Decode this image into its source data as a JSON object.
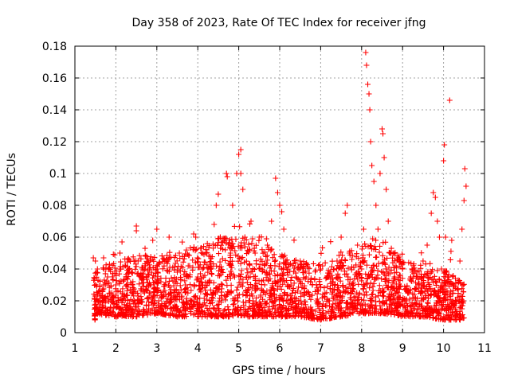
{
  "chart_data": {
    "type": "scatter",
    "title": "Day 358 of 2023, Rate Of TEC Index for receiver jfng",
    "xlabel": "GPS time / hours",
    "ylabel": "ROTI / TECUs",
    "xlim": [
      1,
      11
    ],
    "ylim": [
      0,
      0.18
    ],
    "x_ticks": [
      "1",
      "2",
      "3",
      "4",
      "5",
      "6",
      "7",
      "8",
      "9",
      "10",
      "11"
    ],
    "y_ticks": [
      "0",
      "0.02",
      "0.04",
      "0.06",
      "0.08",
      "0.1",
      "0.12",
      "0.14",
      "0.16",
      "0.18"
    ],
    "grid": true,
    "marker": "+",
    "color": "#ff0000",
    "series": [
      {
        "name": "ROTI",
        "points": [
          [
            1.45,
            0.047
          ],
          [
            1.5,
            0.045
          ],
          [
            1.55,
            0.04
          ],
          [
            1.6,
            0.025
          ],
          [
            1.6,
            0.015
          ],
          [
            1.7,
            0.03
          ],
          [
            1.7,
            0.047
          ],
          [
            1.75,
            0.02
          ],
          [
            1.8,
            0.035
          ],
          [
            1.8,
            0.012
          ],
          [
            1.9,
            0.025
          ],
          [
            1.95,
            0.018
          ],
          [
            2.0,
            0.03
          ],
          [
            2.05,
            0.02
          ],
          [
            2.1,
            0.04
          ],
          [
            2.1,
            0.05
          ],
          [
            2.15,
            0.057
          ],
          [
            2.2,
            0.022
          ],
          [
            2.25,
            0.035
          ],
          [
            2.3,
            0.015
          ],
          [
            2.4,
            0.03
          ],
          [
            2.45,
            0.045
          ],
          [
            2.5,
            0.067
          ],
          [
            2.5,
            0.064
          ],
          [
            2.55,
            0.02
          ],
          [
            2.6,
            0.035
          ],
          [
            2.7,
            0.025
          ],
          [
            2.75,
            0.048
          ],
          [
            2.8,
            0.015
          ],
          [
            2.85,
            0.03
          ],
          [
            2.9,
            0.058
          ],
          [
            3.0,
            0.065
          ],
          [
            3.0,
            0.04
          ],
          [
            3.05,
            0.02
          ],
          [
            3.1,
            0.032
          ],
          [
            3.2,
            0.045
          ],
          [
            3.3,
            0.06
          ],
          [
            3.35,
            0.025
          ],
          [
            3.4,
            0.015
          ],
          [
            3.5,
            0.038
          ],
          [
            3.55,
            0.05
          ],
          [
            3.6,
            0.022
          ],
          [
            3.7,
            0.03
          ],
          [
            3.8,
            0.042
          ],
          [
            3.9,
            0.062
          ],
          [
            3.95,
            0.06
          ],
          [
            4.0,
            0.035
          ],
          [
            4.05,
            0.018
          ],
          [
            4.1,
            0.028
          ],
          [
            4.2,
            0.05
          ],
          [
            4.3,
            0.04
          ],
          [
            4.4,
            0.068
          ],
          [
            4.45,
            0.08
          ],
          [
            4.5,
            0.087
          ],
          [
            4.55,
            0.06
          ],
          [
            4.6,
            0.03
          ],
          [
            4.7,
            0.1
          ],
          [
            4.72,
            0.098
          ],
          [
            4.8,
            0.05
          ],
          [
            4.85,
            0.08
          ],
          [
            4.9,
            0.035
          ],
          [
            4.95,
            0.1
          ],
          [
            5.0,
            0.112
          ],
          [
            5.05,
            0.115
          ],
          [
            5.05,
            0.1
          ],
          [
            5.1,
            0.09
          ],
          [
            5.15,
            0.06
          ],
          [
            5.2,
            0.04
          ],
          [
            5.3,
            0.07
          ],
          [
            5.35,
            0.02
          ],
          [
            5.4,
            0.05
          ],
          [
            5.5,
            0.06
          ],
          [
            5.6,
            0.033
          ],
          [
            5.65,
            0.018
          ],
          [
            5.7,
            0.055
          ],
          [
            5.8,
            0.07
          ],
          [
            5.9,
            0.097
          ],
          [
            5.95,
            0.088
          ],
          [
            6.0,
            0.08
          ],
          [
            6.05,
            0.076
          ],
          [
            6.1,
            0.065
          ],
          [
            6.15,
            0.045
          ],
          [
            6.2,
            0.03
          ],
          [
            6.3,
            0.02
          ],
          [
            6.4,
            0.035
          ],
          [
            6.5,
            0.045
          ],
          [
            6.6,
            0.025
          ],
          [
            6.7,
            0.015
          ],
          [
            6.8,
            0.03
          ],
          [
            6.9,
            0.02
          ],
          [
            7.0,
            0.04
          ],
          [
            7.1,
            0.022
          ],
          [
            7.2,
            0.035
          ],
          [
            7.3,
            0.018
          ],
          [
            7.4,
            0.045
          ],
          [
            7.5,
            0.06
          ],
          [
            7.6,
            0.075
          ],
          [
            7.65,
            0.08
          ],
          [
            7.7,
            0.05
          ],
          [
            7.8,
            0.03
          ],
          [
            7.9,
            0.055
          ],
          [
            8.0,
            0.04
          ],
          [
            8.05,
            0.065
          ],
          [
            8.1,
            0.176
          ],
          [
            8.12,
            0.168
          ],
          [
            8.15,
            0.156
          ],
          [
            8.18,
            0.15
          ],
          [
            8.2,
            0.14
          ],
          [
            8.22,
            0.12
          ],
          [
            8.25,
            0.105
          ],
          [
            8.3,
            0.095
          ],
          [
            8.35,
            0.08
          ],
          [
            8.4,
            0.065
          ],
          [
            8.45,
            0.1
          ],
          [
            8.5,
            0.128
          ],
          [
            8.52,
            0.125
          ],
          [
            8.55,
            0.11
          ],
          [
            8.6,
            0.09
          ],
          [
            8.65,
            0.07
          ],
          [
            8.7,
            0.05
          ],
          [
            8.8,
            0.035
          ],
          [
            8.9,
            0.025
          ],
          [
            9.0,
            0.04
          ],
          [
            9.1,
            0.02
          ],
          [
            9.2,
            0.035
          ],
          [
            9.3,
            0.015
          ],
          [
            9.4,
            0.03
          ],
          [
            9.5,
            0.045
          ],
          [
            9.6,
            0.055
          ],
          [
            9.7,
            0.075
          ],
          [
            9.75,
            0.088
          ],
          [
            9.8,
            0.085
          ],
          [
            9.85,
            0.07
          ],
          [
            9.9,
            0.06
          ],
          [
            9.95,
            0.04
          ],
          [
            10.0,
            0.108
          ],
          [
            10.02,
            0.118
          ],
          [
            10.05,
            0.06
          ],
          [
            10.1,
            0.035
          ],
          [
            10.15,
            0.146
          ],
          [
            10.2,
            0.058
          ],
          [
            10.25,
            0.03
          ],
          [
            10.3,
            0.02
          ],
          [
            10.4,
            0.045
          ],
          [
            10.45,
            0.065
          ],
          [
            10.5,
            0.083
          ],
          [
            10.52,
            0.103
          ],
          [
            10.55,
            0.092
          ],
          [
            10.45,
            0.015
          ],
          [
            10.4,
            0.01
          ]
        ]
      }
    ],
    "density_envelope": [
      [
        1.5,
        0.012,
        0.04
      ],
      [
        2.0,
        0.01,
        0.045
      ],
      [
        2.5,
        0.01,
        0.05
      ],
      [
        3.0,
        0.012,
        0.048
      ],
      [
        3.5,
        0.01,
        0.05
      ],
      [
        4.0,
        0.01,
        0.055
      ],
      [
        4.5,
        0.01,
        0.06
      ],
      [
        5.0,
        0.01,
        0.062
      ],
      [
        5.5,
        0.01,
        0.058
      ],
      [
        6.0,
        0.01,
        0.05
      ],
      [
        6.5,
        0.01,
        0.045
      ],
      [
        7.0,
        0.008,
        0.045
      ],
      [
        7.5,
        0.01,
        0.05
      ],
      [
        8.0,
        0.012,
        0.055
      ],
      [
        8.5,
        0.012,
        0.06
      ],
      [
        9.0,
        0.01,
        0.045
      ],
      [
        9.5,
        0.01,
        0.042
      ],
      [
        10.0,
        0.008,
        0.04
      ],
      [
        10.5,
        0.008,
        0.035
      ]
    ]
  }
}
